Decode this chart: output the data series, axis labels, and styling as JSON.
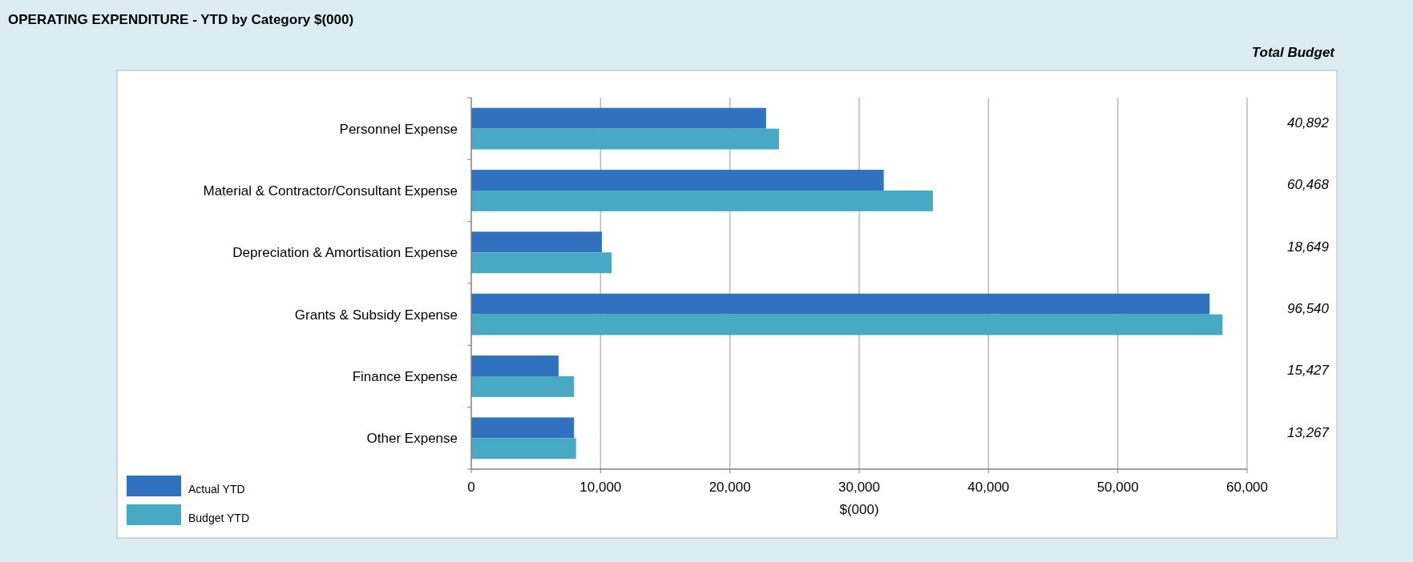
{
  "chart_data": {
    "type": "bar",
    "orientation": "horizontal",
    "title": "OPERATING EXPENDITURE - YTD by Category $(000)",
    "subtitle": "Total Budget",
    "xlabel": "$(000)",
    "categories": [
      "Personnel Expense",
      "Material & Contractor/Consultant Expense",
      "Depreciation & Amortisation Expense",
      "Grants & Subsidy Expense",
      "Finance Expense",
      "Other Expense"
    ],
    "series": [
      {
        "name": "Actual YTD",
        "color": "#3071c0",
        "values": [
          22800,
          31900,
          10100,
          57100,
          6750,
          7950
        ]
      },
      {
        "name": "Budget YTD",
        "color": "#48a9c5",
        "values": [
          23800,
          35700,
          10850,
          58100,
          7950,
          8100
        ]
      }
    ],
    "xlim": [
      0,
      60000
    ],
    "xticks": [
      {
        "value": 0,
        "label": "0"
      },
      {
        "value": 10000,
        "label": "10,000"
      },
      {
        "value": 20000,
        "label": "20,000"
      },
      {
        "value": 30000,
        "label": "30,000"
      },
      {
        "value": 40000,
        "label": "40,000"
      },
      {
        "value": 50000,
        "label": "50,000"
      },
      {
        "value": 60000,
        "label": "60,000"
      }
    ],
    "grid": "x",
    "legend": "bottom left",
    "annotations": [
      "40,892",
      "60,468",
      "18,649",
      "96,540",
      "15,427",
      "13,267"
    ]
  }
}
